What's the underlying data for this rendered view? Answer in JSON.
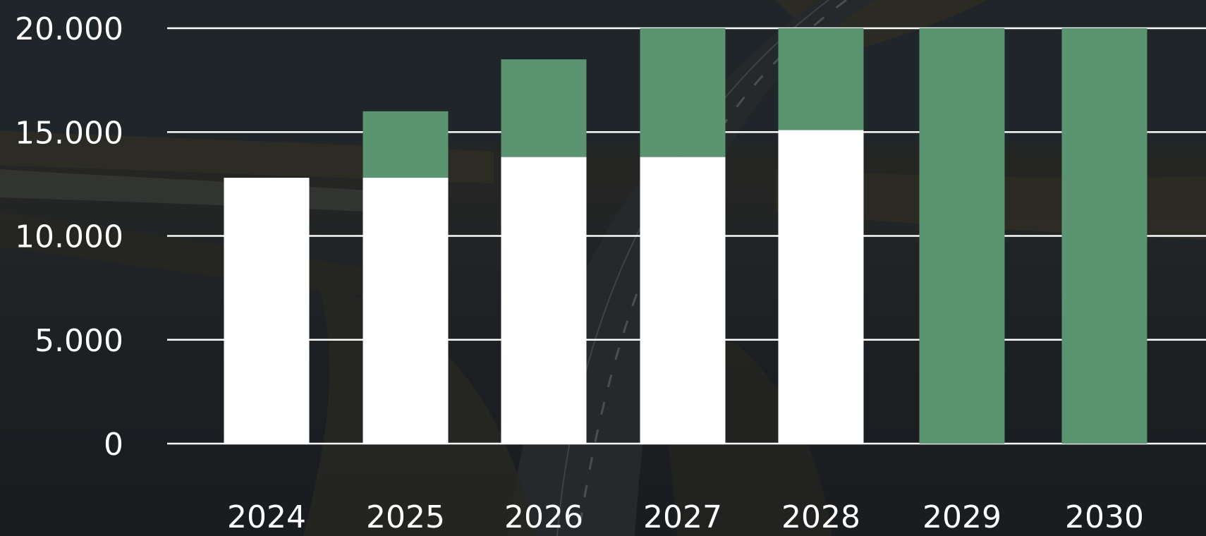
{
  "chart_data": {
    "type": "bar",
    "stacked": true,
    "categories": [
      "2024",
      "2025",
      "2026",
      "2027",
      "2028",
      "2029",
      "2030"
    ],
    "series": [
      {
        "color": "#ffffff",
        "values": [
          12800,
          12800,
          13800,
          13800,
          15100,
          0,
          0
        ]
      },
      {
        "color": "#5a9470",
        "values": [
          0,
          3200,
          4700,
          6200,
          4900,
          20000,
          20000
        ]
      }
    ],
    "y_ticks": [
      "0",
      "5.000",
      "10.000",
      "15.000",
      "20.000"
    ],
    "y_tick_values": [
      0,
      5000,
      10000,
      15000,
      20000
    ],
    "ylim": [
      0,
      20000
    ],
    "grid": true,
    "title": "",
    "xlabel": "",
    "ylabel": ""
  },
  "background": {
    "description_icon": "coastal-road-photo-icon",
    "overlay_color": "#1b1f22"
  }
}
